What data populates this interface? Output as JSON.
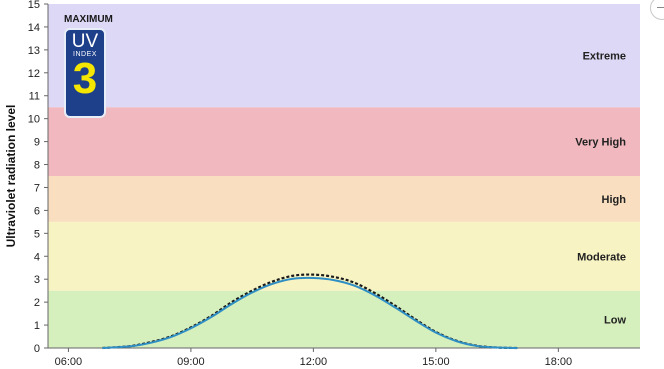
{
  "chart_data": {
    "type": "area",
    "title": "",
    "xlabel": "",
    "ylabel": "Ultraviolet radiation level",
    "ylim": [
      0,
      15
    ],
    "xlim": [
      "05:30",
      "20:00"
    ],
    "x_ticks": [
      "06:00",
      "09:00",
      "12:00",
      "15:00",
      "18:00"
    ],
    "y_ticks": [
      0,
      1,
      2,
      3,
      4,
      5,
      6,
      7,
      8,
      9,
      10,
      11,
      12,
      13,
      14,
      15
    ],
    "grid": false,
    "bands": [
      {
        "label": "Low",
        "from": 0,
        "to": 2.5,
        "color": "#d5f0bd"
      },
      {
        "label": "Moderate",
        "from": 2.5,
        "to": 5.5,
        "color": "#f8f3c3"
      },
      {
        "label": "High",
        "from": 5.5,
        "to": 7.5,
        "color": "#f9dfbf"
      },
      {
        "label": "Very High",
        "from": 7.5,
        "to": 10.5,
        "color": "#f1b9bf"
      },
      {
        "label": "Extreme",
        "from": 10.5,
        "to": 15,
        "color": "#ddd8f6"
      }
    ],
    "series": [
      {
        "style": "dashed",
        "color": "#1b1b1b",
        "x": [
          "06:50",
          "07:30",
          "08:00",
          "08:30",
          "09:00",
          "09:30",
          "10:00",
          "10:30",
          "11:00",
          "11:30",
          "12:00",
          "12:30",
          "13:00",
          "13:30",
          "14:00",
          "14:30",
          "15:00",
          "15:30",
          "16:00",
          "16:30",
          "17:00"
        ],
        "values": [
          0.0,
          0.08,
          0.25,
          0.5,
          0.9,
          1.4,
          2.0,
          2.5,
          2.9,
          3.15,
          3.2,
          3.1,
          2.85,
          2.4,
          1.85,
          1.25,
          0.7,
          0.32,
          0.1,
          0.02,
          0.0
        ]
      },
      {
        "style": "solid",
        "color": "#2f8fc4",
        "x": [
          "06:50",
          "07:30",
          "08:00",
          "08:30",
          "09:00",
          "09:30",
          "10:00",
          "10:30",
          "11:00",
          "11:30",
          "12:00",
          "12:30",
          "13:00",
          "13:30",
          "14:00",
          "14:30",
          "15:00",
          "15:30",
          "16:00",
          "16:30",
          "17:00"
        ],
        "values": [
          0.0,
          0.07,
          0.22,
          0.47,
          0.86,
          1.35,
          1.92,
          2.42,
          2.8,
          3.02,
          3.05,
          2.96,
          2.72,
          2.3,
          1.77,
          1.2,
          0.67,
          0.3,
          0.09,
          0.02,
          0.0
        ]
      }
    ]
  },
  "badge": {
    "caption": "MAXIMUM",
    "word": "UV",
    "sub": "INDEX",
    "value": "3"
  },
  "colors": {
    "badge_bg": "#1e3f8a",
    "badge_value": "#f4e600"
  }
}
